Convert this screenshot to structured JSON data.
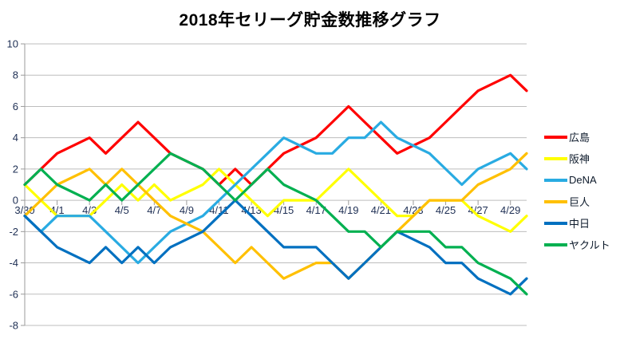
{
  "title": "2018年セリーグ貯金数推移グラフ",
  "colors": {
    "grid": "#bdbdbd",
    "axis": "#9b9b9b",
    "tick_label": "#1e2f54",
    "title_text": "#000000"
  },
  "chart_data": {
    "type": "line",
    "title": "2018年セリーグ貯金数推移グラフ",
    "xlabel": "",
    "ylabel": "",
    "ylim": [
      -8,
      10
    ],
    "ytick_step": 2,
    "y_tick_labels": [
      "10",
      "8",
      "6",
      "4",
      "2",
      "0",
      "-2",
      "-4",
      "-6",
      "-8"
    ],
    "grid": true,
    "legend_position": "right",
    "x_label_every": 2,
    "x_axis_labels": [
      "3/30",
      "4/1",
      "4/3",
      "4/5",
      "4/7",
      "4/9",
      "4/11",
      "4/13",
      "4/15",
      "4/17",
      "4/19",
      "4/21",
      "4/23",
      "4/25",
      "4/27",
      "4/29"
    ],
    "dates": [
      "3/30",
      "3/31",
      "4/1",
      "4/2",
      "4/3",
      "4/4",
      "4/5",
      "4/6",
      "4/7",
      "4/8",
      "4/9",
      "4/10",
      "4/11",
      "4/12",
      "4/13",
      "4/14",
      "4/15",
      "4/16",
      "4/17",
      "4/18",
      "4/19",
      "4/20",
      "4/21",
      "4/22",
      "4/23",
      "4/24",
      "4/25",
      "4/26",
      "4/27",
      "4/28",
      "4/29",
      "4/30"
    ],
    "gap_note": "null = no game that day; line connects straight across gaps",
    "series": [
      {
        "key": "hiroshima",
        "name": "広島",
        "color": "#ff0000",
        "values": [
          1,
          2,
          3,
          null,
          4,
          3,
          4,
          5,
          4,
          3,
          null,
          2,
          1,
          2,
          1,
          2,
          3,
          null,
          4,
          5,
          6,
          5,
          4,
          3,
          null,
          4,
          5,
          6,
          7,
          null,
          8,
          7
        ]
      },
      {
        "key": "hanshin",
        "name": "阪神",
        "color": "#ffff00",
        "values": [
          1,
          0,
          -1,
          null,
          -1,
          0,
          1,
          0,
          1,
          0,
          null,
          1,
          2,
          1,
          0,
          -1,
          0,
          null,
          0,
          1,
          2,
          1,
          0,
          -1,
          -1,
          0,
          0,
          0,
          -1,
          null,
          -2,
          -1
        ]
      },
      {
        "key": "dena",
        "name": "DeNA",
        "color": "#29abe2",
        "values": [
          -1,
          -2,
          -1,
          null,
          -1,
          -2,
          -3,
          -4,
          -3,
          -2,
          null,
          -1,
          0,
          1,
          2,
          3,
          4,
          null,
          3,
          3,
          4,
          4,
          5,
          4,
          null,
          3,
          2,
          1,
          2,
          null,
          3,
          2
        ]
      },
      {
        "key": "kyojin",
        "name": "巨人",
        "color": "#ffc000",
        "values": [
          -1,
          0,
          1,
          null,
          2,
          1,
          2,
          1,
          0,
          -1,
          null,
          -2,
          -3,
          -4,
          -3,
          -4,
          -5,
          null,
          -4,
          -4,
          -5,
          -4,
          -3,
          -2,
          -1,
          0,
          0,
          0,
          1,
          null,
          2,
          3
        ]
      },
      {
        "key": "chunichi",
        "name": "中日",
        "color": "#0070c0",
        "values": [
          -1,
          -2,
          -3,
          null,
          -4,
          -3,
          -4,
          -3,
          -4,
          -3,
          null,
          -2,
          -1,
          0,
          -1,
          -2,
          -3,
          null,
          -3,
          -4,
          -5,
          -4,
          -3,
          -2,
          null,
          -3,
          -4,
          -4,
          -5,
          null,
          -6,
          -5
        ]
      },
      {
        "key": "yakult",
        "name": "ヤクルト",
        "color": "#00b050",
        "values": [
          1,
          2,
          1,
          null,
          0,
          1,
          0,
          1,
          2,
          3,
          null,
          2,
          1,
          0,
          1,
          2,
          1,
          null,
          0,
          -1,
          -2,
          -2,
          -3,
          -2,
          null,
          -2,
          -3,
          -3,
          -4,
          null,
          -5,
          -6
        ]
      }
    ]
  }
}
